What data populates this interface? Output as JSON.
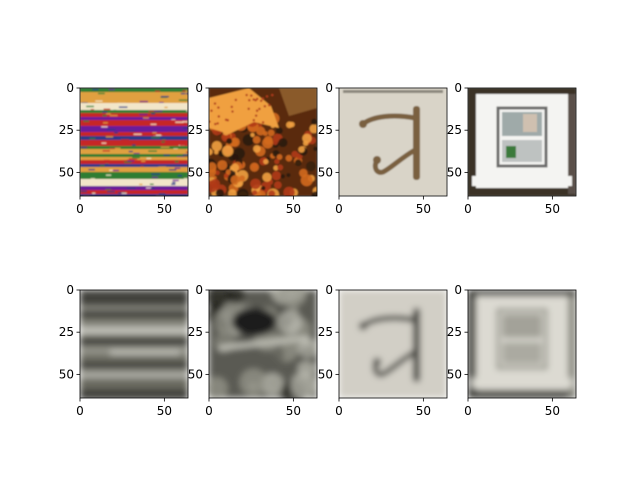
{
  "chart_data": [
    {
      "type": "image",
      "row": 1,
      "col": 1,
      "content": "stacked colorful patterned textiles",
      "colormap": "rgb",
      "xlim": [
        0,
        64
      ],
      "ylim": [
        64,
        0
      ],
      "xticks": [
        0,
        50
      ],
      "yticks": [
        0,
        25,
        50
      ],
      "palette": [
        "#2a3a8a",
        "#c62828",
        "#2e7d32",
        "#e0a040",
        "#f2e6c9",
        "#6a1b9a"
      ]
    },
    {
      "type": "image",
      "row": 1,
      "col": 2,
      "content": "orange starfish on coral",
      "colormap": "rgb",
      "xlim": [
        0,
        64
      ],
      "ylim": [
        64,
        0
      ],
      "xticks": [
        0,
        50
      ],
      "yticks": [
        0,
        25,
        50
      ],
      "palette": [
        "#5a2a0e",
        "#d2691e",
        "#f0a040",
        "#b03a1a",
        "#2a1a10",
        "#8a5a2a"
      ]
    },
    {
      "type": "image",
      "row": 1,
      "col": 3,
      "content": "brass wall hook on light background",
      "colormap": "rgb",
      "xlim": [
        0,
        64
      ],
      "ylim": [
        64,
        0
      ],
      "xticks": [
        0,
        50
      ],
      "yticks": [
        0,
        25,
        50
      ],
      "palette": [
        "#d9d4c8",
        "#7a6040",
        "#4a3a22"
      ]
    },
    {
      "type": "image",
      "row": 1,
      "col": 4,
      "content": "white wall cabinet with glass door",
      "colormap": "rgb",
      "xlim": [
        0,
        64
      ],
      "ylim": [
        64,
        0
      ],
      "xticks": [
        0,
        50
      ],
      "yticks": [
        0,
        25,
        50
      ],
      "palette": [
        "#f4f4f2",
        "#6a6a6a",
        "#2a2a2a",
        "#3a7a3a"
      ]
    },
    {
      "type": "image",
      "row": 2,
      "col": 1,
      "content": "blurry grayscale reconstruction of textiles",
      "colormap": "gray",
      "xlim": [
        0,
        64
      ],
      "ylim": [
        64,
        0
      ],
      "xticks": [
        0,
        50
      ],
      "yticks": [
        0,
        25,
        50
      ],
      "palette": [
        "#6a6a60",
        "#c8c8c0",
        "#3a3a34",
        "#9a9a90"
      ]
    },
    {
      "type": "image",
      "row": 2,
      "col": 2,
      "content": "blurry grayscale reconstruction of starfish",
      "colormap": "gray",
      "xlim": [
        0,
        64
      ],
      "ylim": [
        64,
        0
      ],
      "xticks": [
        0,
        50
      ],
      "yticks": [
        0,
        25,
        50
      ],
      "palette": [
        "#5a5a52",
        "#9a9a90",
        "#1e1e1a",
        "#c0c0b6"
      ]
    },
    {
      "type": "image",
      "row": 2,
      "col": 3,
      "content": "blurry grayscale reconstruction of wall hook",
      "colormap": "gray",
      "xlim": [
        0,
        64
      ],
      "ylim": [
        64,
        0
      ],
      "xticks": [
        0,
        50
      ],
      "yticks": [
        0,
        25,
        50
      ],
      "palette": [
        "#d2cfc6",
        "#3a3a34",
        "#8a8a80"
      ]
    },
    {
      "type": "image",
      "row": 2,
      "col": 4,
      "content": "blurry grayscale reconstruction of cabinet",
      "colormap": "gray",
      "xlim": [
        0,
        64
      ],
      "ylim": [
        64,
        0
      ],
      "xticks": [
        0,
        50
      ],
      "yticks": [
        0,
        25,
        50
      ],
      "palette": [
        "#dcdad2",
        "#8a8a80",
        "#3a3a34"
      ]
    }
  ]
}
